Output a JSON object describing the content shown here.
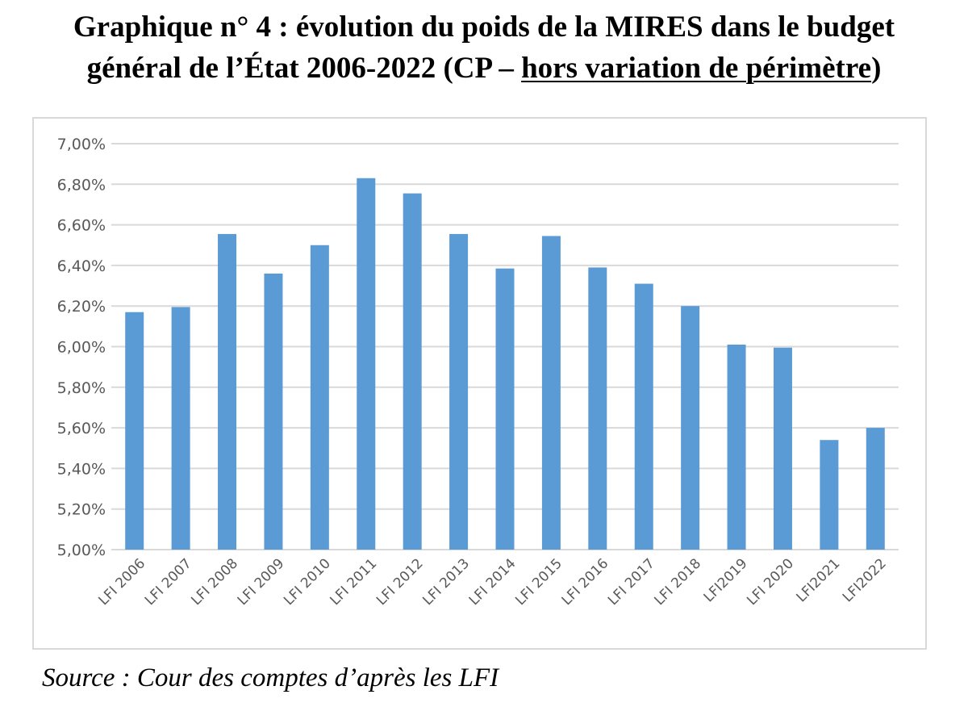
{
  "title": {
    "before": "Graphique n° 4 : évolution du poids de la MIRES dans le budget",
    "line2_start": "général de l’État 2006-2022 (CP – ",
    "underlined": "hors variation de périmètre",
    "end": ")"
  },
  "source": "Source : Cour des comptes d’après les LFI",
  "colors": {
    "bar": "#5b9bd5",
    "grid": "#d9d9d9",
    "axis_text": "#595959",
    "frame": "#d9d9d9"
  },
  "chart_data": {
    "type": "bar",
    "categories": [
      "LFI 2006",
      "LFI 2007",
      "LFI 2008",
      "LFI 2009",
      "LFI 2010",
      "LFI 2011",
      "LFI 2012",
      "LFI 2013",
      "LFI 2014",
      "LFI 2015",
      "LFI 2016",
      "LFI 2017",
      "LFI 2018",
      "LFI2019",
      "LFI 2020",
      "LFI2021",
      "LFI2022"
    ],
    "values": [
      6.17,
      6.195,
      6.555,
      6.36,
      6.5,
      6.83,
      6.755,
      6.555,
      6.385,
      6.545,
      6.39,
      6.31,
      6.2,
      6.01,
      5.995,
      5.54,
      5.6
    ],
    "ylim": [
      5.0,
      7.0
    ],
    "yticks": [
      5.0,
      5.2,
      5.4,
      5.6,
      5.8,
      6.0,
      6.2,
      6.4,
      6.6,
      6.8,
      7.0
    ],
    "ytick_labels": [
      "5,00%",
      "5,20%",
      "5,40%",
      "5,60%",
      "5,80%",
      "6,00%",
      "6,20%",
      "6,40%",
      "6,60%",
      "6,80%",
      "7,00%"
    ],
    "grid": true,
    "legend": "none"
  }
}
